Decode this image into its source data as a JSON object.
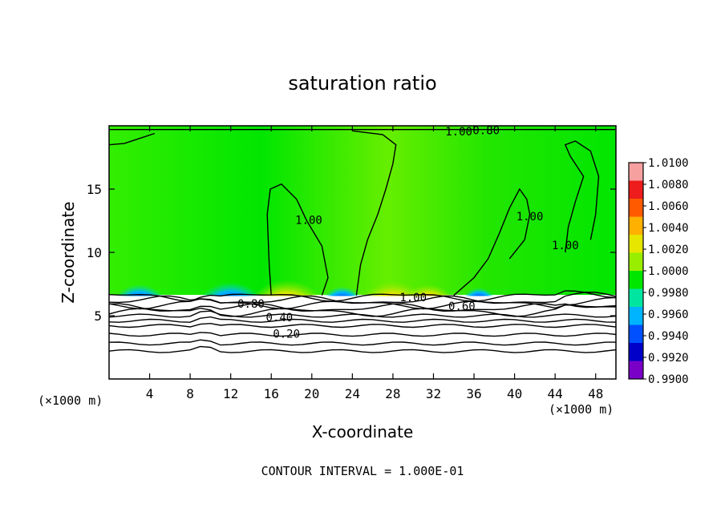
{
  "chart_data": {
    "type": "heatmap",
    "title": "saturation ratio",
    "xlabel": "X-coordinate",
    "ylabel": "Z-coordinate",
    "x_unit": "(×1000 m)",
    "y_unit": "(×1000 m)",
    "xlim": [
      0,
      50
    ],
    "ylim": [
      0,
      20
    ],
    "x_ticks": [
      4,
      8,
      12,
      16,
      20,
      24,
      28,
      32,
      36,
      40,
      44,
      48
    ],
    "y_ticks": [
      5,
      10,
      15
    ],
    "footer": "CONTOUR INTERVAL = 1.000E-01",
    "contour_labels": [
      {
        "text": "1.00",
        "x": 34.5,
        "z": 19.5
      },
      {
        "text": "0.80",
        "x": 37.2,
        "z": 19.6
      },
      {
        "text": "1.00",
        "x": 19.7,
        "z": 12.5
      },
      {
        "text": "1.00",
        "x": 41.5,
        "z": 12.8
      },
      {
        "text": "1.00",
        "x": 45.0,
        "z": 10.5
      },
      {
        "text": "0.80",
        "x": 14.0,
        "z": 5.9
      },
      {
        "text": "1.00",
        "x": 30.0,
        "z": 6.4
      },
      {
        "text": "0.60",
        "x": 34.8,
        "z": 5.7
      },
      {
        "text": "0.40",
        "x": 16.8,
        "z": 4.8
      },
      {
        "text": "0.20",
        "x": 17.5,
        "z": 3.5
      }
    ],
    "colorbar": {
      "labels": [
        "1.0100",
        "1.0080",
        "1.0060",
        "1.0040",
        "1.0020",
        "1.0000",
        "0.9980",
        "0.9960",
        "0.9940",
        "0.9920",
        "0.9900"
      ],
      "colors": [
        "#f7a0a0",
        "#ee1c1c",
        "#ff5a00",
        "#ffb000",
        "#e6e600",
        "#99ee00",
        "#00e600",
        "#00e6a0",
        "#00b4ff",
        "#0050ff",
        "#0000c8",
        "#7a00c8"
      ]
    },
    "field_colors": {
      "background": "#00e600",
      "lower": "#ffffff",
      "contour": "#000000"
    }
  }
}
